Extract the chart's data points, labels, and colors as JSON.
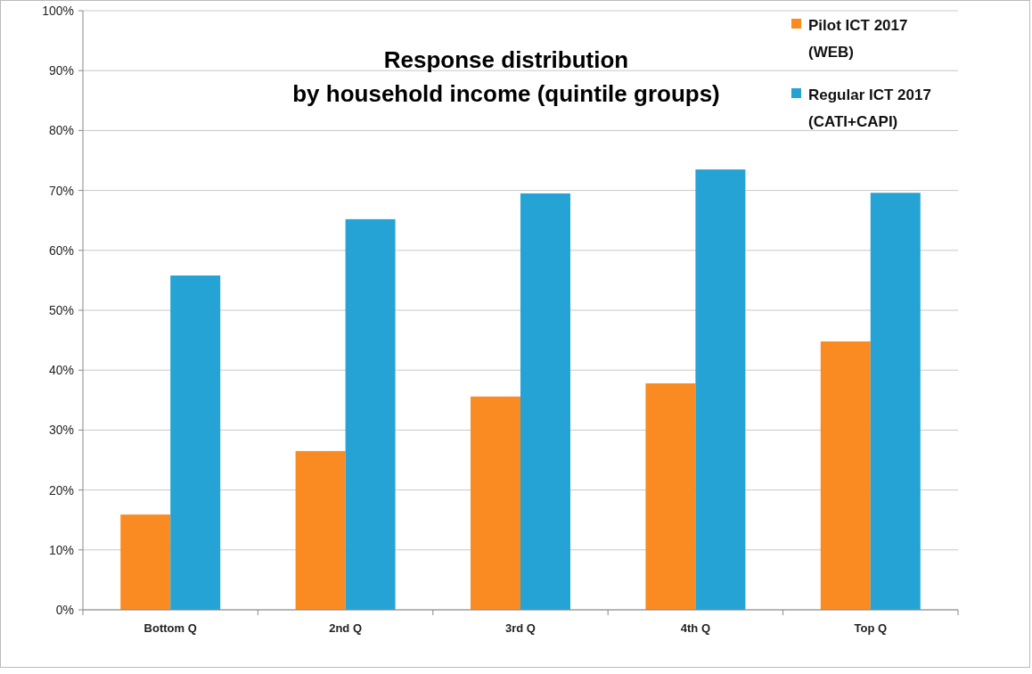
{
  "chart_data": {
    "type": "bar",
    "title": "Response distribution\nby household income  (quintile groups)",
    "categories": [
      "Bottom Q",
      "2nd Q",
      "3rd Q",
      "4th Q",
      "Top Q"
    ],
    "series": [
      {
        "name": "Pilot ICT 2017 (WEB)",
        "color": "#f98b22",
        "values": [
          15.9,
          26.5,
          35.6,
          37.8,
          44.8
        ]
      },
      {
        "name": "Regular ICT 2017 (CATI+CAPI)",
        "color": "#25a3d4",
        "values": [
          55.8,
          65.2,
          69.5,
          73.5,
          69.6
        ]
      }
    ],
    "ylim": [
      0,
      100
    ],
    "yticks": [
      {
        "value": 0,
        "label": "0%"
      },
      {
        "value": 10,
        "label": "10%"
      },
      {
        "value": 20,
        "label": "20%"
      },
      {
        "value": 30,
        "label": "30%"
      },
      {
        "value": 40,
        "label": "40%"
      },
      {
        "value": 50,
        "label": "50%"
      },
      {
        "value": 60,
        "label": "60%"
      },
      {
        "value": 70,
        "label": "70%"
      },
      {
        "value": 80,
        "label": "80%"
      },
      {
        "value": 90,
        "label": "90%"
      },
      {
        "value": 100,
        "label": "100%"
      }
    ],
    "grid": "y",
    "legend": "top right"
  }
}
